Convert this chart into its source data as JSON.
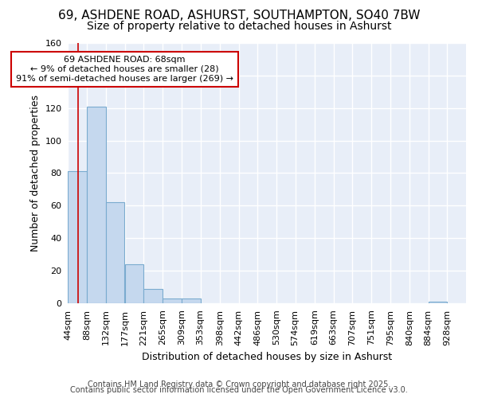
{
  "title1": "69, ASHDENE ROAD, ASHURST, SOUTHAMPTON, SO40 7BW",
  "title2": "Size of property relative to detached houses in Ashurst",
  "xlabel": "Distribution of detached houses by size in Ashurst",
  "ylabel": "Number of detached properties",
  "bin_edges": [
    44,
    88,
    132,
    177,
    221,
    265,
    309,
    353,
    398,
    442,
    486,
    530,
    574,
    619,
    663,
    707,
    751,
    795,
    840,
    884,
    928
  ],
  "bar_heights": [
    81,
    121,
    62,
    24,
    9,
    3,
    3,
    0,
    0,
    0,
    0,
    0,
    0,
    0,
    0,
    0,
    0,
    0,
    0,
    1,
    0
  ],
  "bar_color": "#c5d8ee",
  "bar_edge_color": "#7aabcf",
  "property_size": 68,
  "red_line_color": "#cc0000",
  "annotation_text": "69 ASHDENE ROAD: 68sqm\n← 9% of detached houses are smaller (28)\n91% of semi-detached houses are larger (269) →",
  "annotation_box_color": "#cc0000",
  "ylim": [
    0,
    160
  ],
  "yticks": [
    0,
    20,
    40,
    60,
    80,
    100,
    120,
    140,
    160
  ],
  "plot_bg_color": "#e8eef8",
  "fig_bg_color": "#ffffff",
  "grid_color": "#ffffff",
  "footer1": "Contains HM Land Registry data © Crown copyright and database right 2025.",
  "footer2": "Contains public sector information licensed under the Open Government Licence v3.0.",
  "title1_fontsize": 11,
  "title2_fontsize": 10,
  "ylabel_fontsize": 9,
  "xlabel_fontsize": 9,
  "tick_fontsize": 8,
  "footer_fontsize": 7
}
